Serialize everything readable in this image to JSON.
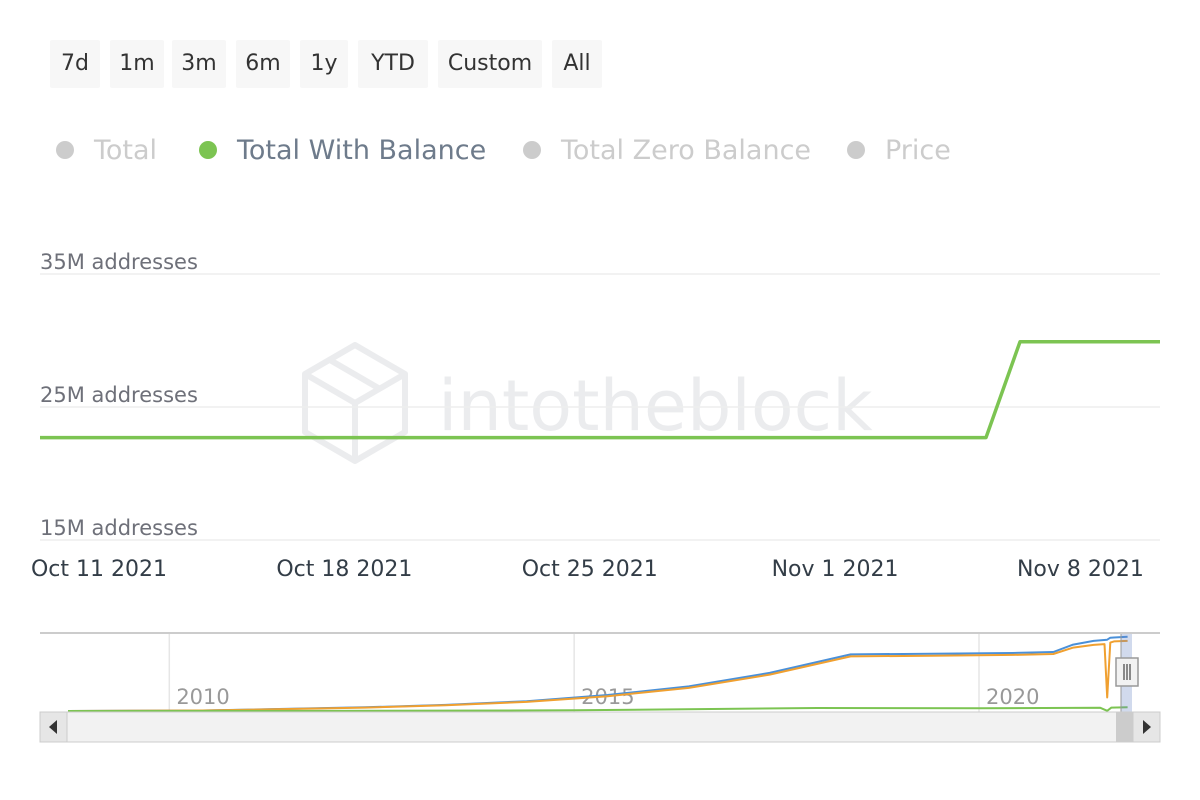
{
  "range_selector": {
    "buttons": [
      "7d",
      "1m",
      "3m",
      "6m",
      "1y",
      "YTD",
      "Custom",
      "All"
    ]
  },
  "legend": [
    {
      "name": "Total",
      "color": "#cccccc",
      "active": false
    },
    {
      "name": "Total With Balance",
      "color": "#7cc452",
      "active": true
    },
    {
      "name": "Total Zero Balance",
      "color": "#cccccc",
      "active": false
    },
    {
      "name": "Price",
      "color": "#cccccc",
      "active": false
    }
  ],
  "watermark": "intotheblock",
  "chart_data": {
    "type": "line",
    "y_unit_label": "addresses",
    "y_ticks": [
      "15M addresses",
      "25M addresses",
      "35M addresses"
    ],
    "ylim": [
      15000000,
      35000000
    ],
    "x_ticks": [
      "Oct 11 2021",
      "Oct 18 2021",
      "Oct 25 2021",
      "Nov 1 2021",
      "Nov 8 2021"
    ],
    "xlim": [
      "2021-10-11",
      "2021-11-12"
    ],
    "grid": true,
    "series": [
      {
        "name": "Total With Balance",
        "color": "#7cc452",
        "points": [
          {
            "x": "2021-10-11",
            "y": 22700000
          },
          {
            "x": "2021-11-07",
            "y": 22700000
          },
          {
            "x": "2021-11-08",
            "y": 29900000
          },
          {
            "x": "2021-11-12",
            "y": 29900000
          }
        ]
      }
    ],
    "navigator": {
      "year_labels": [
        "2010",
        "2015",
        "2020"
      ],
      "series": [
        {
          "name": "Total",
          "color": "#4a90d9",
          "points": [
            {
              "x": "2008-10",
              "y": 0
            },
            {
              "x": "2010-06",
              "y": 200000
            },
            {
              "x": "2012-06",
              "y": 1500000
            },
            {
              "x": "2013-06",
              "y": 2500000
            },
            {
              "x": "2014-06",
              "y": 4000000
            },
            {
              "x": "2015-06",
              "y": 6500000
            },
            {
              "x": "2016-06",
              "y": 10000000
            },
            {
              "x": "2017-06",
              "y": 15500000
            },
            {
              "x": "2018-06",
              "y": 23000000
            },
            {
              "x": "2019-06",
              "y": 23300000
            },
            {
              "x": "2020-06",
              "y": 23600000
            },
            {
              "x": "2020-12",
              "y": 24000000
            },
            {
              "x": "2021-03",
              "y": 27000000
            },
            {
              "x": "2021-06",
              "y": 28500000
            },
            {
              "x": "2021-08",
              "y": 29000000
            },
            {
              "x": "2021-08-15",
              "y": 29800000
            },
            {
              "x": "2021-09",
              "y": 29900000
            },
            {
              "x": "2021-11",
              "y": 30200000
            }
          ]
        },
        {
          "name": "Total Zero Balance",
          "color": "#f0a030",
          "points": [
            {
              "x": "2008-10",
              "y": 0
            },
            {
              "x": "2010-06",
              "y": 200000
            },
            {
              "x": "2012-06",
              "y": 1400000
            },
            {
              "x": "2013-06",
              "y": 2300000
            },
            {
              "x": "2014-06",
              "y": 3700000
            },
            {
              "x": "2015-06",
              "y": 6000000
            },
            {
              "x": "2016-06",
              "y": 9400000
            },
            {
              "x": "2017-06",
              "y": 14800000
            },
            {
              "x": "2018-06",
              "y": 22200000
            },
            {
              "x": "2019-06",
              "y": 22500000
            },
            {
              "x": "2020-06",
              "y": 22800000
            },
            {
              "x": "2020-12",
              "y": 23200000
            },
            {
              "x": "2021-03",
              "y": 25800000
            },
            {
              "x": "2021-06",
              "y": 26900000
            },
            {
              "x": "2021-07-20",
              "y": 27200000
            },
            {
              "x": "2021-08-01",
              "y": 5500000
            },
            {
              "x": "2021-08-15",
              "y": 27800000
            },
            {
              "x": "2021-09",
              "y": 28300000
            },
            {
              "x": "2021-11",
              "y": 28500000
            }
          ]
        },
        {
          "name": "Total With Balance",
          "color": "#7cc452",
          "points": [
            {
              "x": "2008-10",
              "y": 0
            },
            {
              "x": "2012-01",
              "y": 50000
            },
            {
              "x": "2015-01",
              "y": 300000
            },
            {
              "x": "2018-01",
              "y": 1200000
            },
            {
              "x": "2020-01",
              "y": 1100000
            },
            {
              "x": "2021-07",
              "y": 1300000
            },
            {
              "x": "2021-08-01",
              "y": 100000
            },
            {
              "x": "2021-08-20",
              "y": 1400000
            },
            {
              "x": "2021-11",
              "y": 1500000
            }
          ]
        }
      ]
    }
  }
}
